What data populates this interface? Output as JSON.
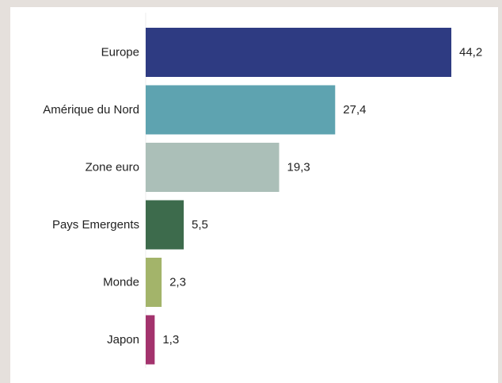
{
  "chart_data": {
    "type": "bar",
    "orientation": "horizontal",
    "categories": [
      "Europe",
      "Amérique du Nord",
      "Zone euro",
      "Pays Emergents",
      "Monde",
      "Japon"
    ],
    "values": [
      44.2,
      27.4,
      19.3,
      5.5,
      2.3,
      1.3
    ],
    "value_labels": [
      "44,2",
      "27,4",
      "19,3",
      "5,5",
      "2,3",
      "1,3"
    ],
    "colors": [
      "#2e3b82",
      "#5ea3b0",
      "#abbfb8",
      "#3d6b4c",
      "#a3b46a",
      "#a3336d"
    ],
    "title": "",
    "xlabel": "",
    "ylabel": "",
    "xlim": [
      0,
      44.2
    ],
    "grid": false,
    "legend": "none"
  }
}
